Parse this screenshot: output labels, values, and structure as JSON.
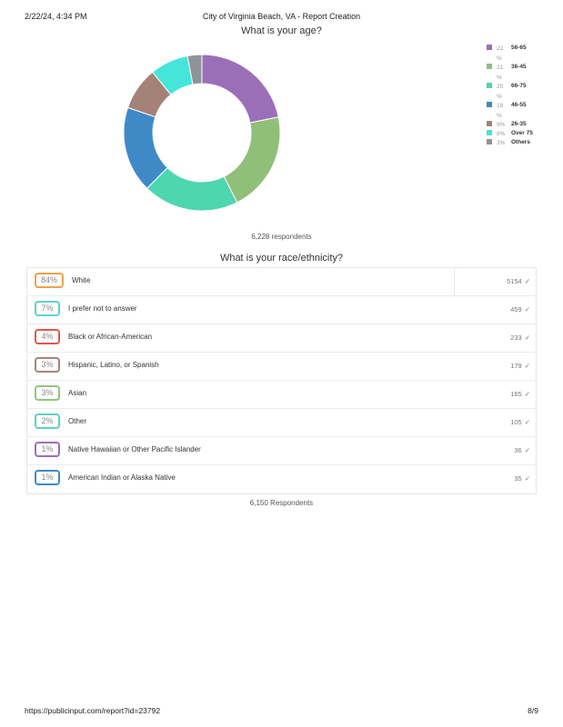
{
  "header": {
    "datetime": "2/22/24, 4:34 PM",
    "title": "City of Virginia Beach, VA - Report Creation"
  },
  "footer": {
    "url": "https://publicinput.com/report?id=23792",
    "page": "8/9"
  },
  "age_question": {
    "title": "What is your age?",
    "respondents": "6,228 respondents"
  },
  "race_question": {
    "title": "What is your race/ethnicity?",
    "respondents": "6,150 Respondents"
  },
  "chart_data": [
    {
      "type": "pie",
      "title": "What is your age?",
      "donut": true,
      "labels": [
        "56-65",
        "36-45",
        "66-75",
        "46-55",
        "26-35",
        "Over 75",
        "Others"
      ],
      "values": [
        22,
        21,
        20,
        18,
        9,
        8,
        3
      ],
      "display": [
        "22 %",
        "21 %",
        "20 %",
        "18 %",
        "9%",
        "8%",
        "3%"
      ],
      "colors": [
        "#9b6fb8",
        "#8fbf78",
        "#4dd6b0",
        "#3f8ac6",
        "#a58277",
        "#45e5d9",
        "#8e9396"
      ],
      "legend_placement": "right"
    },
    {
      "type": "table",
      "title": "What is your race/ethnicity?",
      "rows": [
        {
          "pct": "84%",
          "label": "White",
          "count": "5154",
          "color": "#f0a04b"
        },
        {
          "pct": "7%",
          "label": "I prefer not to answer",
          "count": "459",
          "color": "#5fd3cf"
        },
        {
          "pct": "4%",
          "label": "Black or African-American",
          "count": "233",
          "color": "#e0594a"
        },
        {
          "pct": "3%",
          "label": "Hispanic, Latino, or Spanish",
          "count": "179",
          "color": "#a88477"
        },
        {
          "pct": "3%",
          "label": "Asian",
          "count": "165",
          "color": "#8fc77a"
        },
        {
          "pct": "2%",
          "label": "Other",
          "count": "105",
          "color": "#5fd3b8"
        },
        {
          "pct": "1%",
          "label": "Native Hawaiian or Other Pacific Islander",
          "count": "36",
          "color": "#9b6fb8"
        },
        {
          "pct": "1%",
          "label": "American Indian or Alaska Native",
          "count": "35",
          "color": "#3f8ac6"
        }
      ]
    }
  ]
}
